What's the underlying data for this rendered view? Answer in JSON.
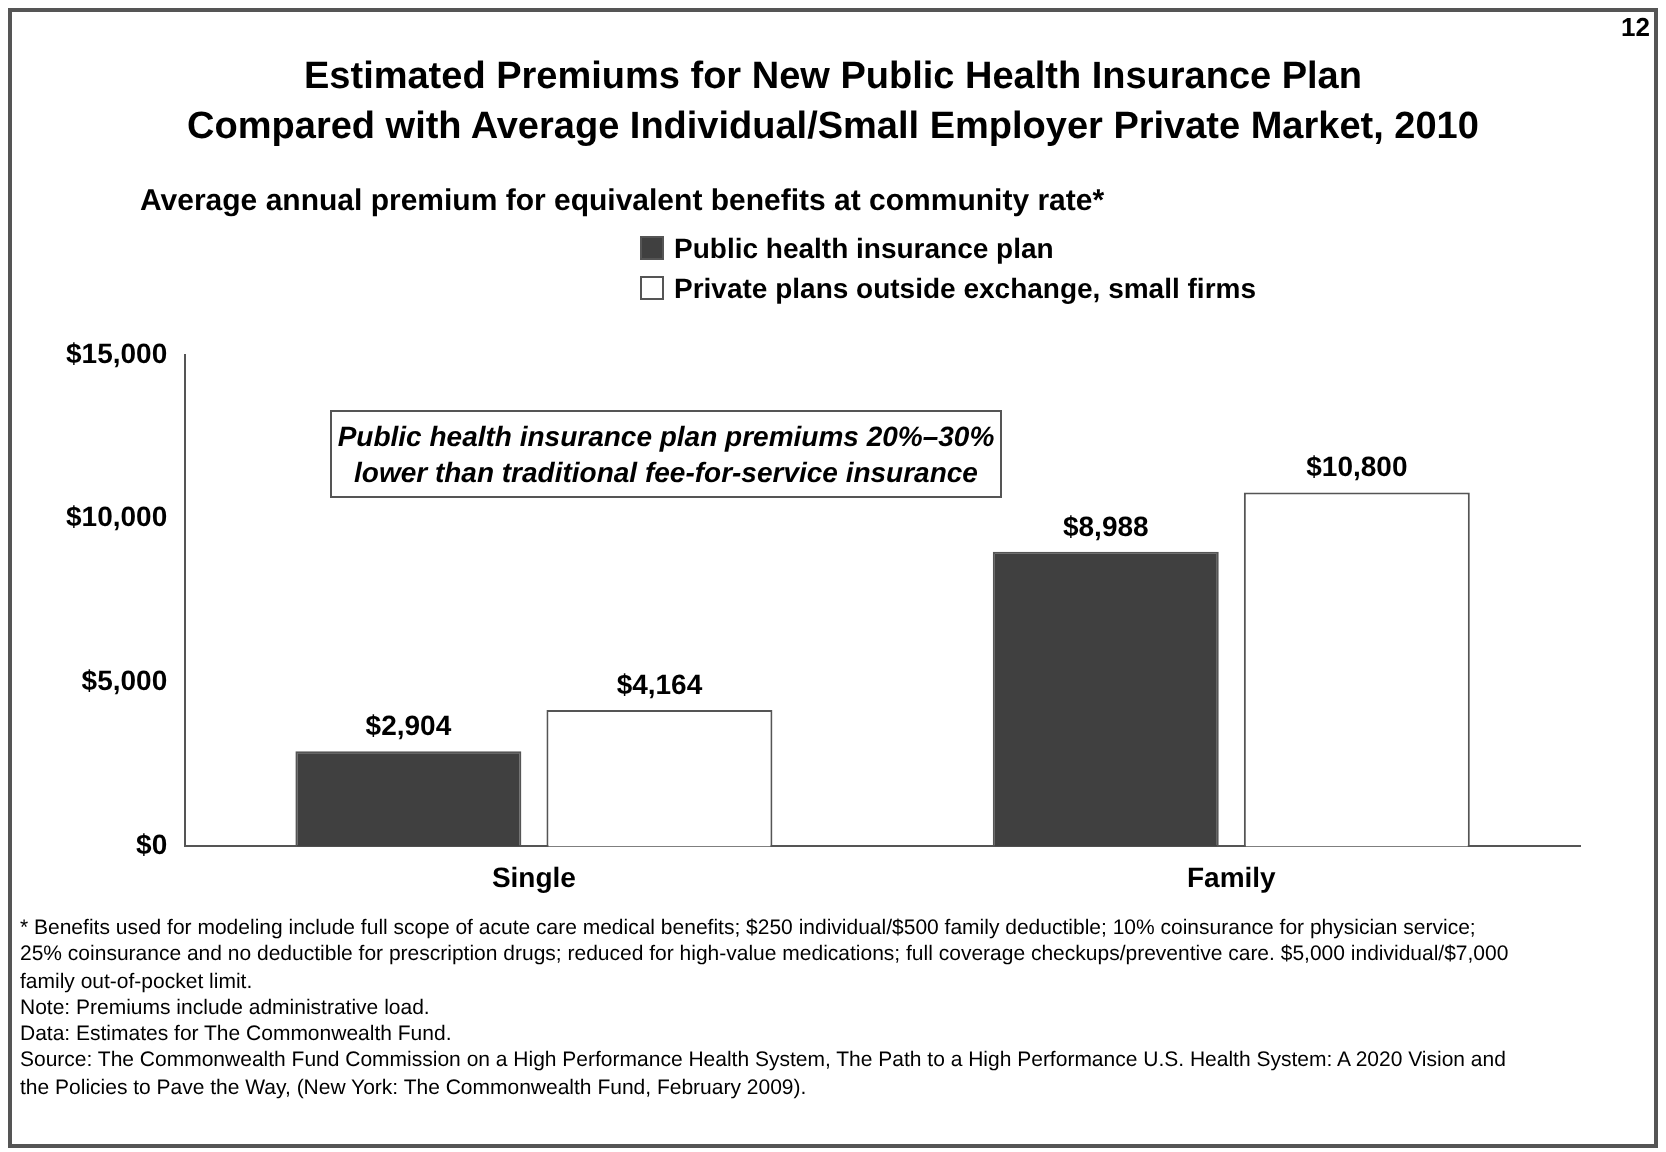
{
  "chart_data": {
    "type": "bar",
    "title": "Estimated Premiums for New Public Health Insurance Plan\nCompared with Average Individual/Small Employer Private Market, 2010",
    "subtitle": "Average annual premium for equivalent benefits at community rate*",
    "categories": [
      "Single",
      "Family"
    ],
    "series": [
      {
        "name": "Public health insurance plan",
        "color": "#404040",
        "values": [
          2904,
          8988
        ],
        "value_labels": [
          "$2,904",
          "$8,988"
        ]
      },
      {
        "name": "Private plans outside exchange, small firms",
        "color": "#ffffff",
        "values": [
          4164,
          10800
        ],
        "value_labels": [
          "$4,164",
          "$10,800"
        ]
      }
    ],
    "ylim": [
      0,
      15000
    ],
    "yticks": [
      {
        "value": 0,
        "label": "$0"
      },
      {
        "value": 5000,
        "label": "$5,000"
      },
      {
        "value": 10000,
        "label": "$10,000"
      },
      {
        "value": 15000,
        "label": "$15,000"
      }
    ],
    "grid": false,
    "legend": "top",
    "annotations": [
      "12",
      "Public health insurance plan premiums 20%–30% lower than traditional fee-for-service insurance",
      "* Benefits used for modeling include full scope of acute care medical benefits; $250 individual/$500 family deductible; 10% coinsurance for physician service; 25% coinsurance and no deductible for prescription drugs; reduced for high-value medications; full coverage checkups/preventive care. $5,000 individual/$7,000 family out-of-pocket limit.",
      "Note: Premiums include administrative load.",
      "Data: Estimates for The Commonwealth Fund.",
      "Source: The Commonwealth Fund Commission on a High Performance Health System, The Path to a High Performance U.S. Health System: A 2020 Vision and the Policies to Pave the Way, (New York: The Commonwealth Fund, February 2009)."
    ]
  }
}
